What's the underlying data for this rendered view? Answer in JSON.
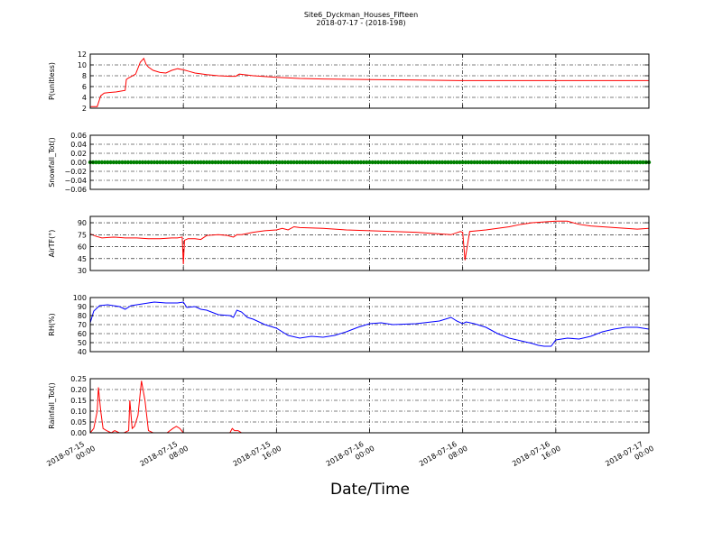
{
  "figure": {
    "title": "Site6_Dyckman_Houses_Fifteen",
    "subtitle": "2018-07-17 - (2018-198)",
    "xlabel": "Date/Time"
  },
  "colors": {
    "red": "#ff0000",
    "green": "#008000",
    "blue": "#0000ff",
    "grid": "#000000"
  },
  "chart_data": [
    {
      "type": "line",
      "ylabel": "P(unitless)",
      "color": "#ff0000",
      "xlim": [
        0,
        48
      ],
      "ylim": [
        2,
        12
      ],
      "yticks": [
        2,
        4,
        6,
        8,
        10,
        12
      ],
      "x_tick_values": [
        0,
        8,
        16,
        24,
        32,
        40,
        48
      ],
      "x_tick_labels": [
        [
          "2018-07-15",
          "00:00"
        ],
        [
          "2018-07-15",
          "08:00"
        ],
        [
          "2018-07-15",
          "16:00"
        ],
        [
          "2018-07-16",
          "00:00"
        ],
        [
          "2018-07-16",
          "08:00"
        ],
        [
          "2018-07-16",
          "16:00"
        ],
        [
          "2018-07-17",
          "00:00"
        ]
      ],
      "grid": true,
      "series": [
        {
          "x": [
            0,
            0.6,
            0.9,
            1.2,
            1.6,
            2.2,
            3.0,
            3.1,
            3.3,
            3.9,
            4.3,
            4.6,
            4.8,
            5.0,
            5.4,
            6.0,
            6.5,
            7.0,
            7.5,
            8.0,
            8.5,
            9.0,
            10,
            11,
            12,
            12.5,
            12.8,
            13.2,
            14,
            16,
            18,
            20,
            24,
            28,
            32,
            36,
            40,
            44,
            48
          ],
          "values": [
            2.3,
            2.3,
            4.3,
            4.8,
            4.9,
            5.0,
            5.3,
            7.3,
            7.6,
            8.3,
            10.5,
            11.2,
            10.1,
            9.6,
            9.0,
            8.6,
            8.5,
            9.0,
            9.3,
            9.1,
            8.8,
            8.5,
            8.2,
            8.0,
            7.9,
            7.9,
            8.3,
            8.2,
            8.0,
            7.7,
            7.5,
            7.4,
            7.3,
            7.2,
            7.1,
            7.1,
            7.1,
            7.1,
            7.1
          ]
        }
      ]
    },
    {
      "type": "scatter",
      "ylabel": "Snowfall_Tot()",
      "color": "#008000",
      "xlim": [
        0,
        48
      ],
      "ylim": [
        -0.06,
        0.06
      ],
      "yticks": [
        -0.06,
        -0.04,
        -0.02,
        0.0,
        0.02,
        0.04,
        0.06
      ],
      "ytick_labels": [
        "−0.06",
        "−0.04",
        "−0.02",
        "0.00",
        "0.02",
        "0.04",
        "0.06"
      ],
      "x_tick_values": [
        0,
        8,
        16,
        24,
        32,
        40,
        48
      ],
      "grid": true,
      "series": [
        {
          "x_start": 0,
          "x_end": 48,
          "x_step": 0.25,
          "value": 0.0
        }
      ]
    },
    {
      "type": "line",
      "ylabel": "AirTF(°)",
      "color": "#ff0000",
      "xlim": [
        0,
        48
      ],
      "ylim": [
        30,
        98
      ],
      "yticks": [
        30,
        45,
        60,
        75,
        90
      ],
      "x_tick_values": [
        0,
        8,
        16,
        24,
        32,
        40,
        48
      ],
      "grid": true,
      "series": [
        {
          "x": [
            0,
            0.5,
            1.0,
            2,
            3,
            4,
            5,
            6,
            7,
            7.5,
            7.9,
            8.0,
            8.1,
            8.4,
            9,
            9.5,
            10,
            11,
            11.8,
            12,
            12.3,
            12.6,
            13,
            14,
            15,
            16,
            16.5,
            17,
            17.5,
            18,
            20,
            22,
            24,
            26,
            28,
            30,
            31,
            31.8,
            32.0,
            32.2,
            32.6,
            34,
            36,
            37,
            38,
            39,
            40,
            41,
            42,
            43,
            44,
            45,
            46,
            47,
            48
          ],
          "values": [
            76,
            73,
            71,
            72,
            71,
            71,
            70,
            70,
            71,
            71,
            72,
            38,
            68,
            70,
            70,
            69,
            74,
            75,
            74,
            73,
            72,
            75,
            75,
            78,
            80,
            81,
            83,
            81,
            85,
            84,
            83,
            81,
            80,
            79,
            78,
            76,
            75,
            79,
            78,
            43,
            79,
            81,
            85,
            88,
            90,
            91,
            92,
            92,
            88,
            86,
            85,
            84,
            83,
            82,
            83
          ]
        }
      ]
    },
    {
      "type": "line",
      "ylabel": "RH(%)",
      "color": "#0000ff",
      "xlim": [
        0,
        48
      ],
      "ylim": [
        40,
        100
      ],
      "yticks": [
        40,
        50,
        60,
        70,
        80,
        90,
        100
      ],
      "x_tick_values": [
        0,
        8,
        16,
        24,
        32,
        40,
        48
      ],
      "grid": true,
      "series": [
        {
          "x": [
            0,
            0.3,
            0.8,
            1.5,
            2.5,
            3.0,
            3.5,
            4.5,
            5.5,
            6.5,
            7.5,
            8.0,
            8.3,
            9.0,
            9.5,
            10,
            11,
            12,
            12.3,
            12.6,
            13,
            13.5,
            14,
            15,
            16,
            17,
            18,
            19,
            20,
            21,
            22,
            23,
            24,
            25,
            26,
            28,
            30,
            30.5,
            31,
            31.5,
            32,
            32.3,
            33,
            34,
            35,
            36,
            37,
            38,
            38.5,
            39,
            39.6,
            40,
            41,
            42,
            43,
            44,
            45,
            46,
            47,
            48
          ],
          "values": [
            72,
            85,
            91,
            92,
            90,
            87,
            91,
            93,
            95,
            94,
            94,
            95,
            89,
            90,
            87,
            86,
            81,
            80,
            78,
            86,
            84,
            78,
            76,
            70,
            66,
            58,
            55,
            57,
            56,
            58,
            62,
            67,
            71,
            72,
            70,
            71,
            74,
            76,
            78,
            74,
            71,
            73,
            71,
            67,
            60,
            55,
            52,
            49,
            47,
            46,
            46,
            53,
            55,
            54,
            57,
            62,
            65,
            67,
            67,
            65
          ]
        }
      ]
    },
    {
      "type": "line",
      "ylabel": "Rainfall_Tot()",
      "color": "#ff0000",
      "xlim": [
        0,
        48
      ],
      "ylim": [
        0,
        0.25
      ],
      "yticks": [
        0.0,
        0.05,
        0.1,
        0.15,
        0.2,
        0.25
      ],
      "ytick_labels": [
        "0.00",
        "0.05",
        "0.10",
        "0.15",
        "0.20",
        "0.25"
      ],
      "x_tick_values": [
        0,
        8,
        16,
        24,
        32,
        40,
        48
      ],
      "x_tick_labels": [
        [
          "2018-07-15",
          "00:00"
        ],
        [
          "2018-07-15",
          "08:00"
        ],
        [
          "2018-07-15",
          "16:00"
        ],
        [
          "2018-07-16",
          "00:00"
        ],
        [
          "2018-07-16",
          "08:00"
        ],
        [
          "2018-07-16",
          "16:00"
        ],
        [
          "2018-07-17",
          "00:00"
        ]
      ],
      "grid": true,
      "series": [
        {
          "x": [
            0,
            0.3,
            0.6,
            0.7,
            0.9,
            1.1,
            1.4,
            1.8,
            2.1,
            2.5,
            2.9,
            3.3,
            3.4,
            3.6,
            3.8,
            4.1,
            4.4,
            4.7,
            5.0,
            5.4,
            6.0,
            6.6,
            7.1,
            7.4,
            7.7,
            8.0,
            8.3,
            12,
            12.2,
            12.4,
            12.7,
            13.0,
            16,
            24,
            32,
            40,
            48
          ],
          "values": [
            0,
            0.02,
            0.1,
            0.21,
            0.1,
            0.02,
            0.01,
            0.0,
            0.01,
            0.0,
            0.0,
            0.01,
            0.15,
            0.02,
            0.03,
            0.08,
            0.24,
            0.15,
            0.01,
            0.0,
            0.0,
            0.0,
            0.02,
            0.03,
            0.02,
            0.0,
            0.0,
            0.0,
            0.02,
            0.01,
            0.01,
            0.0,
            0.0,
            0.0,
            0.0,
            0.0,
            0.0
          ]
        }
      ]
    }
  ]
}
